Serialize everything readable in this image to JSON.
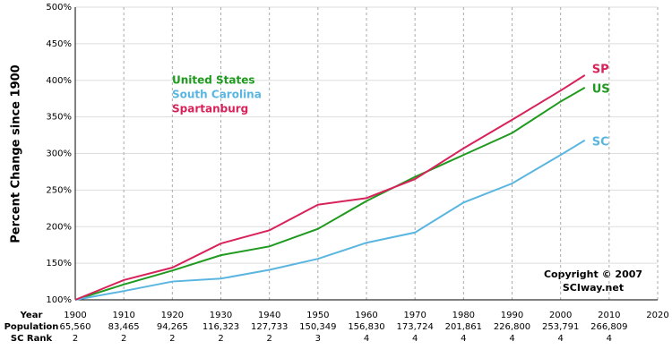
{
  "chart_data": {
    "type": "line",
    "y_label": "Percent Change since 1900",
    "x": [
      1900,
      1910,
      1920,
      1930,
      1940,
      1950,
      1960,
      1970,
      1980,
      1990,
      2000,
      2005
    ],
    "series": [
      {
        "name": "United States",
        "label": "US",
        "color": "#1f9a1f",
        "values": [
          100,
          121,
          140,
          161,
          173,
          197,
          235,
          268,
          298,
          328,
          371,
          390
        ]
      },
      {
        "name": "South Carolina",
        "label": "SC",
        "color": "#5ab6e0",
        "values": [
          100,
          112,
          125,
          129,
          141,
          156,
          178,
          192,
          233,
          259,
          298,
          318
        ]
      },
      {
        "name": "Spartanburg",
        "label": "SP",
        "color": "#d8235a",
        "values": [
          100,
          127,
          144,
          177,
          195,
          230,
          239,
          265,
          307,
          346,
          386,
          407
        ]
      }
    ],
    "xlim": [
      1900,
      2020
    ],
    "xticks": [
      1900,
      1910,
      1920,
      1930,
      1940,
      1950,
      1960,
      1970,
      1980,
      1990,
      2000,
      2010,
      2020
    ],
    "ylim": [
      100,
      500
    ],
    "yticks": [
      {
        "value": 100,
        "label": "100%"
      },
      {
        "value": 150,
        "label": "150%"
      },
      {
        "value": 200,
        "label": "200%"
      },
      {
        "value": 250,
        "label": "250%"
      },
      {
        "value": 300,
        "label": "300%"
      },
      {
        "value": 350,
        "label": "350%"
      },
      {
        "value": 400,
        "label": "400%"
      },
      {
        "value": 450,
        "label": "450%"
      },
      {
        "value": 500,
        "label": "500%"
      }
    ],
    "grid": true,
    "copyright": [
      "Copyright © 2007",
      "SCIway.net"
    ],
    "table": {
      "row_labels": [
        "Year",
        "Population",
        "SC Rank"
      ],
      "population": [
        "65,560",
        "83,465",
        "94,265",
        "116,323",
        "127,733",
        "150,349",
        "156,830",
        "173,724",
        "201,861",
        "226,800",
        "253,791",
        "266,809"
      ],
      "sc_rank": [
        2,
        2,
        2,
        2,
        2,
        3,
        4,
        4,
        4,
        4,
        4,
        4
      ]
    }
  }
}
